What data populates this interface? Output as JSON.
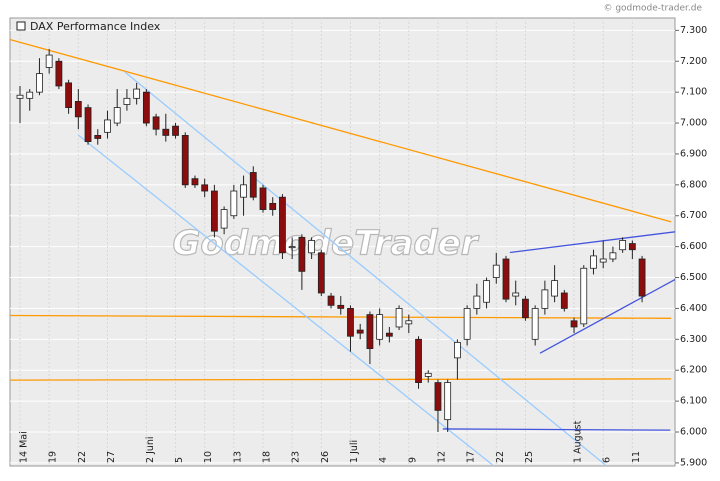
{
  "chart_data": {
    "type": "candlestick",
    "title": "DAX Performance Index",
    "copyright": "© godmode-trader.de",
    "watermark": "GodmodeTrader",
    "categories": [
      "14 Mai",
      null,
      null,
      "19",
      null,
      null,
      "22",
      null,
      null,
      "27",
      null,
      null,
      null,
      "2 Juni",
      null,
      null,
      "5",
      null,
      null,
      "10",
      null,
      null,
      "13",
      null,
      null,
      "18",
      null,
      null,
      "23",
      null,
      null,
      "26",
      null,
      null,
      "1 Juli",
      null,
      null,
      "4",
      null,
      null,
      "9",
      null,
      null,
      "12",
      null,
      null,
      "17",
      null,
      null,
      "22",
      null,
      null,
      "25",
      null,
      null,
      null,
      null,
      "1 August",
      null,
      null,
      "6",
      null,
      null,
      "11",
      null
    ],
    "open": [
      7080,
      7080,
      7100,
      7180,
      7200,
      7130,
      7070,
      7050,
      6960,
      6970,
      7000,
      7060,
      7080,
      7100,
      7020,
      6980,
      6990,
      6960,
      6820,
      6800,
      6780,
      6660,
      6700,
      6760,
      6840,
      6790,
      6740,
      6760,
      6600,
      6630,
      6580,
      6580,
      6440,
      6410,
      6400,
      6330,
      6380,
      6300,
      6320,
      6340,
      6350,
      6300,
      6180,
      6160,
      6040,
      6240,
      6300,
      6400,
      6420,
      6500,
      6560,
      6440,
      6430,
      6300,
      6400,
      6440,
      6450,
      6360,
      6350,
      6530,
      6550,
      6560,
      6590,
      6610,
      6560
    ],
    "high": [
      7120,
      7110,
      7210,
      7240,
      7210,
      7140,
      7110,
      7060,
      6980,
      7040,
      7110,
      7110,
      7130,
      7110,
      7030,
      7030,
      7000,
      6970,
      6830,
      6820,
      6800,
      6730,
      6800,
      6830,
      6860,
      6800,
      6760,
      6770,
      6630,
      6640,
      6630,
      6590,
      6450,
      6440,
      6410,
      6350,
      6390,
      6400,
      6340,
      6410,
      6380,
      6310,
      6200,
      6170,
      6170,
      6300,
      6410,
      6480,
      6500,
      6580,
      6570,
      6490,
      6440,
      6410,
      6490,
      6540,
      6460,
      6370,
      6540,
      6590,
      6620,
      6600,
      6630,
      6620,
      6570
    ],
    "low": [
      7000,
      7040,
      7090,
      7160,
      7110,
      7030,
      6980,
      6930,
      6930,
      6950,
      6990,
      7040,
      7060,
      6990,
      6960,
      6940,
      6950,
      6790,
      6790,
      6760,
      6630,
      6640,
      6690,
      6700,
      6750,
      6710,
      6700,
      6560,
      6560,
      6460,
      6560,
      6440,
      6400,
      6380,
      6260,
      6300,
      6220,
      6280,
      6290,
      6330,
      6320,
      6140,
      6160,
      6000,
      6000,
      6170,
      6280,
      6380,
      6400,
      6480,
      6420,
      6410,
      6360,
      6280,
      6380,
      6420,
      6390,
      6320,
      6340,
      6510,
      6530,
      6550,
      6580,
      6560,
      6420
    ],
    "close": [
      7090,
      7100,
      7160,
      7220,
      7120,
      7050,
      7020,
      6940,
      6950,
      7010,
      7050,
      7080,
      7110,
      7000,
      6980,
      6960,
      6960,
      6800,
      6800,
      6780,
      6650,
      6720,
      6780,
      6800,
      6760,
      6720,
      6720,
      6580,
      6600,
      6520,
      6620,
      6450,
      6410,
      6400,
      6310,
      6320,
      6270,
      6380,
      6310,
      6400,
      6360,
      6160,
      6190,
      6070,
      6160,
      6290,
      6400,
      6440,
      6490,
      6540,
      6430,
      6450,
      6370,
      6400,
      6460,
      6490,
      6400,
      6340,
      6530,
      6570,
      6560,
      6580,
      6620,
      6590,
      6440
    ],
    "up_color": "#ffffff",
    "down_color": "#8b0d0d",
    "ylim": [
      5890,
      7340
    ],
    "yticks": [
      {
        "value": 5900,
        "label": "5.900"
      },
      {
        "value": 6000,
        "label": "6.000"
      },
      {
        "value": 6100,
        "label": "6.100"
      },
      {
        "value": 6200,
        "label": "6.200"
      },
      {
        "value": 6300,
        "label": "6.300"
      },
      {
        "value": 6400,
        "label": "6.400"
      },
      {
        "value": 6500,
        "label": "6.500"
      },
      {
        "value": 6600,
        "label": "6.600"
      },
      {
        "value": 6700,
        "label": "6.700"
      },
      {
        "value": 6800,
        "label": "6.800"
      },
      {
        "value": 6900,
        "label": "6.900"
      },
      {
        "value": 7000,
        "label": "7.000"
      },
      {
        "value": 7100,
        "label": "7.100"
      },
      {
        "value": 7200,
        "label": "7.200"
      },
      {
        "value": 7300,
        "label": "7.300"
      }
    ],
    "grid": true,
    "lines": [
      {
        "color": "#ff9900",
        "x": [
          -1,
          67
        ],
        "y": [
          7270,
          6680
        ]
      },
      {
        "color": "#ff9900",
        "x": [
          -1,
          67
        ],
        "y": [
          6377,
          6368
        ]
      },
      {
        "color": "#ff9900",
        "x": [
          -1,
          67
        ],
        "y": [
          6168,
          6172
        ]
      },
      {
        "color": "#99ccff",
        "x": [
          10.8,
          60.2
        ],
        "y": [
          7165,
          5894
        ]
      },
      {
        "color": "#99ccff",
        "x": [
          6,
          48.6
        ],
        "y": [
          6961,
          5894
        ]
      },
      {
        "color": "#4455dd",
        "x": [
          43.5,
          66.9
        ],
        "y": [
          6010,
          6006
        ]
      },
      {
        "color": "#4455dd",
        "x": [
          50.4,
          67.4
        ],
        "y": [
          6581,
          6648
        ]
      },
      {
        "color": "#4455dd",
        "x": [
          53.5,
          67.4
        ],
        "y": [
          6255,
          6494
        ]
      }
    ]
  }
}
